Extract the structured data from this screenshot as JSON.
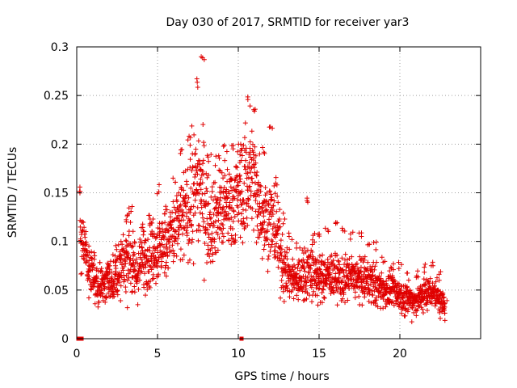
{
  "chart_data": {
    "type": "scatter",
    "title": "Day 030 of 2017, SRMTID for receiver yar3",
    "xlabel": "GPS time / hours",
    "ylabel": "SRMTID / TECUs",
    "xlim": [
      0,
      25
    ],
    "ylim": [
      0,
      0.3
    ],
    "x_ticks": [
      0,
      5,
      10,
      15,
      20
    ],
    "y_ticks": [
      0,
      0.05,
      0.1,
      0.15,
      0.2,
      0.25,
      0.3
    ],
    "x_tick_labels": [
      "0",
      "5",
      "10",
      "15",
      "20"
    ],
    "y_tick_labels": [
      "0",
      "0.05",
      "0.1",
      "0.15",
      "0.2",
      "0.25",
      "0.3"
    ],
    "grid": true,
    "marker": "+",
    "color": "#e00000",
    "series": [
      {
        "name": "SRMTID",
        "envelope_hours": [
          0.2,
          0.5,
          1.0,
          1.5,
          2.0,
          2.5,
          3.0,
          3.3,
          3.6,
          4.0,
          4.5,
          5.0,
          5.5,
          6.0,
          6.5,
          7.0,
          7.5,
          7.8,
          8.2,
          8.7,
          9.2,
          9.7,
          10.2,
          10.7,
          11.0,
          11.5,
          12.0,
          12.4,
          12.8,
          13.2,
          13.7,
          14.2,
          14.6,
          15.0,
          15.5,
          16.0,
          16.5,
          17.0,
          17.5,
          18.0,
          18.5,
          19.0,
          19.5,
          20.0,
          20.5,
          21.0,
          21.5,
          22.0,
          22.5,
          22.8
        ],
        "envelope_median": [
          0.11,
          0.09,
          0.06,
          0.055,
          0.06,
          0.065,
          0.08,
          0.09,
          0.06,
          0.08,
          0.09,
          0.09,
          0.1,
          0.11,
          0.12,
          0.14,
          0.16,
          0.15,
          0.12,
          0.13,
          0.135,
          0.14,
          0.15,
          0.17,
          0.16,
          0.13,
          0.12,
          0.11,
          0.07,
          0.065,
          0.06,
          0.07,
          0.07,
          0.06,
          0.065,
          0.065,
          0.06,
          0.065,
          0.06,
          0.06,
          0.055,
          0.05,
          0.05,
          0.045,
          0.04,
          0.04,
          0.045,
          0.05,
          0.04,
          0.03
        ],
        "envelope_spread": [
          0.03,
          0.025,
          0.02,
          0.02,
          0.02,
          0.02,
          0.03,
          0.04,
          0.02,
          0.03,
          0.03,
          0.03,
          0.03,
          0.035,
          0.04,
          0.05,
          0.06,
          0.06,
          0.04,
          0.04,
          0.04,
          0.04,
          0.05,
          0.05,
          0.05,
          0.04,
          0.04,
          0.04,
          0.025,
          0.02,
          0.02,
          0.03,
          0.03,
          0.02,
          0.02,
          0.02,
          0.02,
          0.02,
          0.02,
          0.02,
          0.02,
          0.015,
          0.015,
          0.015,
          0.015,
          0.015,
          0.015,
          0.015,
          0.015,
          0.01
        ],
        "envelope_max": [
          0.16,
          0.12,
          0.09,
          0.08,
          0.08,
          0.1,
          0.13,
          0.14,
          0.1,
          0.12,
          0.13,
          0.16,
          0.14,
          0.17,
          0.2,
          0.21,
          0.27,
          0.29,
          0.19,
          0.19,
          0.2,
          0.2,
          0.2,
          0.25,
          0.24,
          0.2,
          0.22,
          0.17,
          0.13,
          0.11,
          0.1,
          0.15,
          0.11,
          0.11,
          0.12,
          0.12,
          0.12,
          0.11,
          0.11,
          0.1,
          0.1,
          0.09,
          0.08,
          0.08,
          0.07,
          0.07,
          0.08,
          0.08,
          0.07,
          0.05
        ],
        "zero_points_x": [
          0.1,
          0.2,
          0.3,
          10.2
        ]
      }
    ]
  }
}
